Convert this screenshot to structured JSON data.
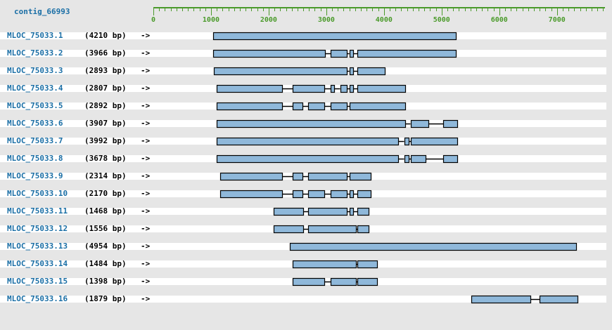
{
  "contig": {
    "name": "contig_66993"
  },
  "axis": {
    "min": 0,
    "max": 7500,
    "major_ticks": [
      0,
      1000,
      2000,
      3000,
      4000,
      5000,
      6000,
      7000
    ],
    "tick_labels": [
      "0",
      "1000",
      "2000",
      "3000",
      "4000",
      "5000",
      "6000",
      "7000"
    ],
    "color": "#4a9a2a"
  },
  "colors": {
    "exon_fill": "#8fb8da",
    "exon_stroke": "#000000",
    "intron": "#000000",
    "link": "#1b6fa6"
  },
  "direction_marker": "->",
  "transcripts": [
    {
      "name": "MLOC_75033.1",
      "length": "(4210 bp)",
      "exons": [
        [
          1040,
          5250
        ]
      ]
    },
    {
      "name": "MLOC_75033.2",
      "length": "(3966 bp)",
      "exons": [
        [
          1040,
          2980
        ],
        [
          3080,
          3360
        ],
        [
          3400,
          3460
        ],
        [
          3540,
          5250
        ]
      ]
    },
    {
      "name": "MLOC_75033.3",
      "length": "(2893 bp)",
      "exons": [
        [
          1050,
          3360
        ],
        [
          3400,
          3460
        ],
        [
          3540,
          4010
        ]
      ]
    },
    {
      "name": "MLOC_75033.4",
      "length": "(2807 bp)",
      "exons": [
        [
          1100,
          2230
        ],
        [
          2420,
          2960
        ],
        [
          3080,
          3140
        ],
        [
          3240,
          3360
        ],
        [
          3410,
          3460
        ],
        [
          3540,
          4370
        ]
      ]
    },
    {
      "name": "MLOC_75033.5",
      "length": "(2892 bp)",
      "exons": [
        [
          1100,
          2230
        ],
        [
          2420,
          2590
        ],
        [
          2690,
          2960
        ],
        [
          3080,
          3360
        ],
        [
          3410,
          4370
        ]
      ]
    },
    {
      "name": "MLOC_75033.6",
      "length": "(3907 bp)",
      "exons": [
        [
          1100,
          4370
        ],
        [
          4460,
          4770
        ],
        [
          5030,
          5270
        ]
      ]
    },
    {
      "name": "MLOC_75033.7",
      "length": "(3992 bp)",
      "exons": [
        [
          1100,
          4250
        ],
        [
          4350,
          4430
        ],
        [
          4470,
          5270
        ]
      ]
    },
    {
      "name": "MLOC_75033.8",
      "length": "(3678 bp)",
      "exons": [
        [
          1100,
          4250
        ],
        [
          4350,
          4430
        ],
        [
          4470,
          4720
        ],
        [
          5030,
          5270
        ]
      ]
    },
    {
      "name": "MLOC_75033.9",
      "length": "(2314 bp)",
      "exons": [
        [
          1160,
          2230
        ],
        [
          2420,
          2590
        ],
        [
          2690,
          3360
        ],
        [
          3410,
          3770
        ]
      ]
    },
    {
      "name": "MLOC_75033.10",
      "length": "(2170 bp)",
      "exons": [
        [
          1160,
          2230
        ],
        [
          2420,
          2590
        ],
        [
          2690,
          2960
        ],
        [
          3080,
          3360
        ],
        [
          3410,
          3460
        ],
        [
          3540,
          3770
        ]
      ]
    },
    {
      "name": "MLOC_75033.11",
      "length": "(1468 bp)",
      "exons": [
        [
          2090,
          2600
        ],
        [
          2690,
          3360
        ],
        [
          3410,
          3460
        ],
        [
          3540,
          3730
        ]
      ]
    },
    {
      "name": "MLOC_75033.12",
      "length": "(1556 bp)",
      "exons": [
        [
          2090,
          2600
        ],
        [
          2690,
          3510
        ],
        [
          3540,
          3730
        ]
      ]
    },
    {
      "name": "MLOC_75033.13",
      "length": "(4954 bp)",
      "exons": [
        [
          2370,
          7330
        ]
      ]
    },
    {
      "name": "MLOC_75033.14",
      "length": "(1484 bp)",
      "exons": [
        [
          2420,
          3510
        ],
        [
          3540,
          3880
        ]
      ]
    },
    {
      "name": "MLOC_75033.15",
      "length": "(1398 bp)",
      "exons": [
        [
          2420,
          2960
        ],
        [
          3080,
          3510
        ],
        [
          3540,
          3880
        ]
      ]
    },
    {
      "name": "MLOC_75033.16",
      "length": "(1879 bp)",
      "exons": [
        [
          5510,
          6540
        ],
        [
          6700,
          7360
        ]
      ]
    }
  ]
}
